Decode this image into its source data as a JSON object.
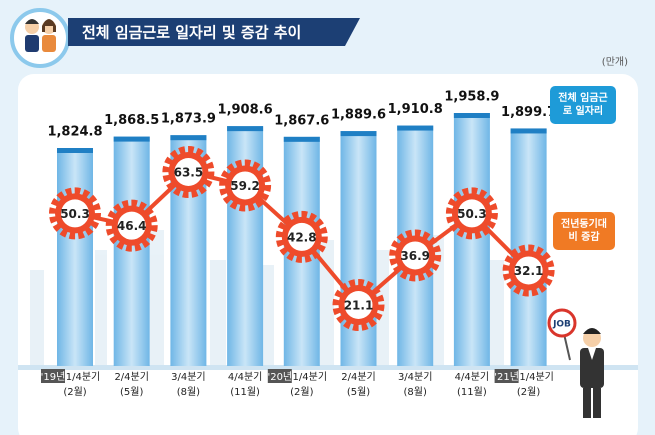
{
  "sign_text": "JOB",
  "chart_data": {
    "type": "bar-line",
    "title": "전체 임금근로 일자리 및 증감 추이",
    "unit": "(만개)",
    "categories": [
      "1/4분기",
      "2/4분기",
      "3/4분기",
      "4/4분기",
      "1/4분기",
      "2/4분기",
      "3/4분기",
      "4/4분기",
      "1/4분기"
    ],
    "category_years": [
      "'19년",
      null,
      null,
      null,
      "'20년",
      null,
      null,
      null,
      "'21년"
    ],
    "category_months": [
      "(2월)",
      "(5월)",
      "(8월)",
      "(11월)",
      "(2월)",
      "(5월)",
      "(8월)",
      "(11월)",
      "(2월)"
    ],
    "series": [
      {
        "name": "전체 임금근로 일자리",
        "color": "#6fb6e6",
        "type": "bar",
        "values": [
          1824.8,
          1868.5,
          1873.9,
          1908.6,
          1867.6,
          1889.6,
          1910.8,
          1958.9,
          1899.7
        ],
        "value_labels": [
          "1,824.8",
          "1,868.5",
          "1,873.9",
          "1,908.6",
          "1,867.6",
          "1,889.6",
          "1,910.8",
          "1,958.9",
          "1,899.7"
        ]
      },
      {
        "name": "전년동기대비 증감",
        "color": "#ee4b2b",
        "type": "line",
        "values": [
          50.3,
          46.4,
          63.5,
          59.2,
          42.8,
          21.1,
          36.9,
          50.3,
          32.1
        ]
      }
    ]
  }
}
